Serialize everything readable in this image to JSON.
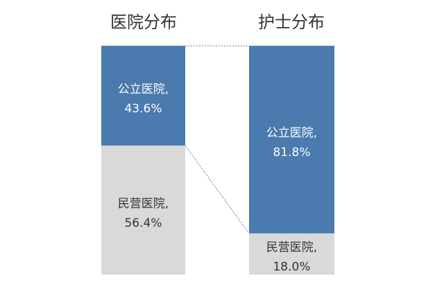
{
  "chart_data": {
    "type": "bar",
    "stacked": true,
    "percent_stacked": true,
    "bars": [
      {
        "title": "医院分布",
        "segments": [
          {
            "name": "公立医院",
            "value": 43.6,
            "label_line1": "公立医院,",
            "label_line2": "43.6%"
          },
          {
            "name": "民营医院",
            "value": 56.4,
            "label_line1": "民营医院,",
            "label_line2": "56.4%"
          }
        ]
      },
      {
        "title": "护士分布",
        "segments": [
          {
            "name": "公立医院",
            "value": 81.8,
            "label_line1": "公立医院,",
            "label_line2": "81.8%"
          },
          {
            "name": "民营医院",
            "value": 18.0,
            "label_line1": "民营医院,",
            "label_line2": "18.0%"
          }
        ]
      }
    ],
    "connector_lines": "dashed",
    "legend": "none",
    "grid": false,
    "colors": {
      "public": "#4a7aae",
      "private": "#d9d9d9",
      "connector": "#4a7aae"
    }
  }
}
